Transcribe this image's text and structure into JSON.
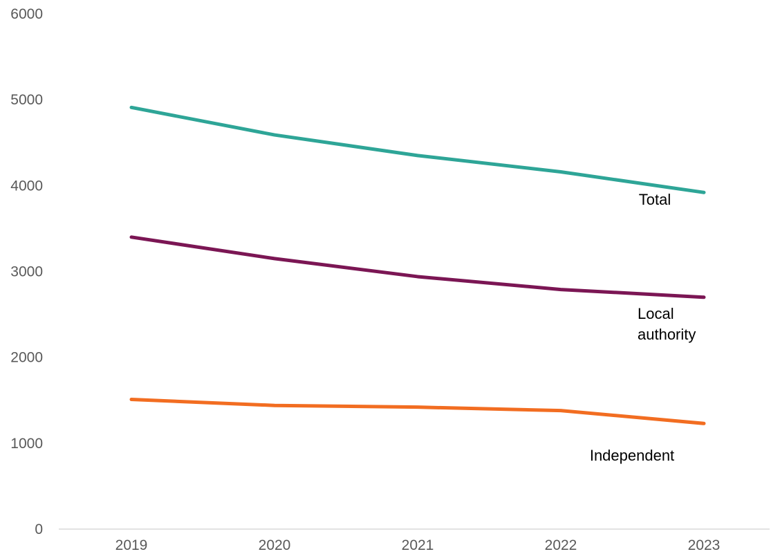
{
  "chart_data": {
    "type": "line",
    "categories": [
      "2019",
      "2020",
      "2021",
      "2022",
      "2023"
    ],
    "ylim": [
      0,
      6000
    ],
    "yticks": [
      "0",
      "1000",
      "2000",
      "3000",
      "4000",
      "5000",
      "6000"
    ],
    "grid": false,
    "title": "",
    "xlabel": "",
    "ylabel": "",
    "series": [
      {
        "name": "Total",
        "label_lines": [
          "Total"
        ],
        "color": "#2ea597",
        "values": [
          4910,
          4590,
          4350,
          4160,
          3920
        ]
      },
      {
        "name": "Local authority",
        "label_lines": [
          "Local",
          "authority"
        ],
        "color": "#7b1654",
        "values": [
          3400,
          3150,
          2940,
          2790,
          2700
        ]
      },
      {
        "name": "Independent",
        "label_lines": [
          "Independent"
        ],
        "color": "#f26d21",
        "values": [
          1510,
          1440,
          1420,
          1380,
          1230
        ]
      }
    ]
  }
}
